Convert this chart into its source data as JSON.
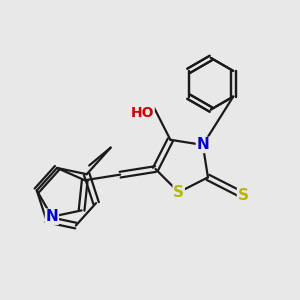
{
  "bg_color": "#e8e8e8",
  "bond_color": "#1a1a1a",
  "bond_width": 1.6,
  "dbo": 0.012,
  "atom_colors": {
    "S": "#b8b800",
    "N": "#0000cc",
    "O": "#cc0000",
    "C": "#1a1a1a"
  },
  "fs": 10,
  "figsize": [
    3.0,
    3.0
  ],
  "dpi": 100
}
